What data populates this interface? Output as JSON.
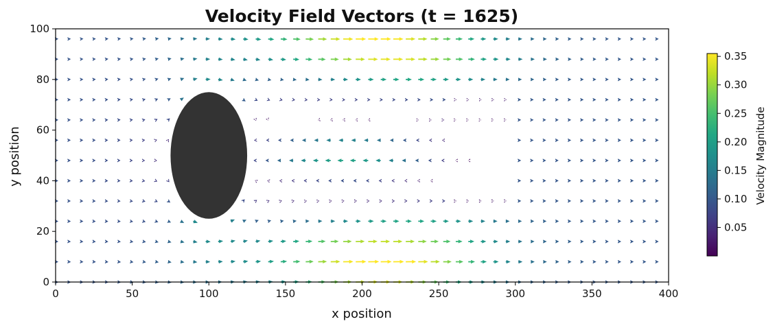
{
  "chart_data": {
    "type": "quiver",
    "title": "Velocity Field Vectors (t = 1625)",
    "xlabel": "x position",
    "ylabel": "y position",
    "xlim": [
      0,
      400
    ],
    "ylim": [
      0,
      100
    ],
    "x_ticks": [
      0,
      50,
      100,
      150,
      200,
      250,
      300,
      350,
      400
    ],
    "y_ticks": [
      0,
      20,
      40,
      60,
      80,
      100
    ],
    "grid": false,
    "colormap": "viridis",
    "obstacle": {
      "shape": "ellipse",
      "center": [
        100,
        50
      ],
      "semi_axes": [
        25,
        25
      ],
      "color": "#333333"
    },
    "vector_grid": {
      "x_start": 0,
      "x_step": 8.16,
      "x_count": 49,
      "y_values": [
        0,
        8,
        16,
        24,
        32,
        40,
        48,
        56,
        64,
        72,
        80,
        88,
        96
      ]
    },
    "colorbar": {
      "label": "Velocity Magnitude",
      "range": [
        0.0,
        0.355
      ],
      "ticks": [
        "0.05",
        "0.10",
        "0.15",
        "0.20",
        "0.25",
        "0.30",
        "0.35"
      ],
      "tick_values": [
        0.05,
        0.1,
        0.15,
        0.2,
        0.25,
        0.3,
        0.35
      ]
    }
  }
}
